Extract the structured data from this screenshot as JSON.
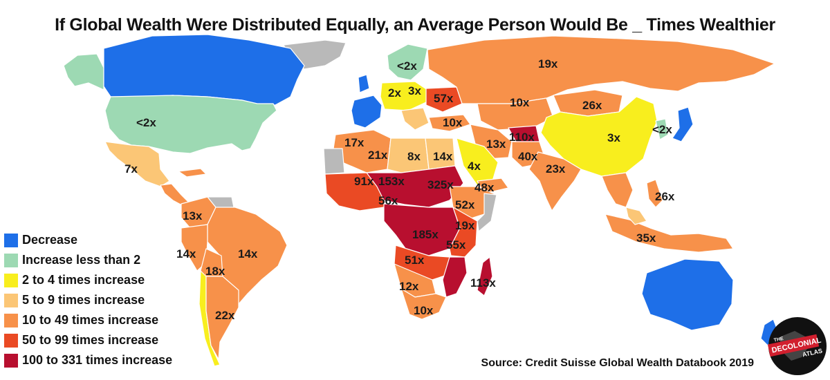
{
  "title": "If Global Wealth Were Distributed Equally, an Average Person Would Be _ Times Wealthier",
  "source": "Source: Credit Suisse Global Wealth Databook 2019",
  "logo": {
    "line1": "THE",
    "line2": "DECOLONIAL",
    "line3": "ATLAS"
  },
  "colors": {
    "decrease": "#1e6fe8",
    "lt2": "#9dd9b3",
    "c2to4": "#f8ee1e",
    "c5to9": "#fbc676",
    "c10to49": "#f7914a",
    "c50to99": "#ea4a24",
    "c100plus": "#b80f2f",
    "nodata": "#b9b9b9"
  },
  "legend": [
    {
      "label": "Decrease",
      "color": "#1e6fe8"
    },
    {
      "label": "Increase less than 2",
      "color": "#9dd9b3"
    },
    {
      "label": "2 to 4 times increase",
      "color": "#f8ee1e"
    },
    {
      "label": "5 to 9 times increase",
      "color": "#fbc676"
    },
    {
      "label": "10 to 49 times increase",
      "color": "#f7914a"
    },
    {
      "label": "50 to 99 times increase",
      "color": "#ea4a24"
    },
    {
      "label": "100 to 331 times increase",
      "color": "#b80f2f"
    }
  ],
  "labels": [
    {
      "id": "usa",
      "text": "<2x"
    },
    {
      "id": "mexico",
      "text": "7x"
    },
    {
      "id": "colombia",
      "text": "13x"
    },
    {
      "id": "peru",
      "text": "14x"
    },
    {
      "id": "brazil",
      "text": "14x"
    },
    {
      "id": "bolivia",
      "text": "18x"
    },
    {
      "id": "argentina",
      "text": "22x"
    },
    {
      "id": "scandinavia",
      "text": "<2x"
    },
    {
      "id": "germany",
      "text": "2x"
    },
    {
      "id": "poland",
      "text": "3x"
    },
    {
      "id": "ukraine",
      "text": "57x"
    },
    {
      "id": "russia",
      "text": "19x"
    },
    {
      "id": "kazakhstan",
      "text": "10x"
    },
    {
      "id": "mongolia",
      "text": "26x"
    },
    {
      "id": "turkey",
      "text": "10x"
    },
    {
      "id": "china",
      "text": "3x"
    },
    {
      "id": "japan",
      "text": "<2x"
    },
    {
      "id": "afghanistan",
      "text": "110x"
    },
    {
      "id": "iran",
      "text": "13x"
    },
    {
      "id": "pakistan",
      "text": "40x"
    },
    {
      "id": "india",
      "text": "23x"
    },
    {
      "id": "saudi",
      "text": "4x"
    },
    {
      "id": "algeria",
      "text": "17x"
    },
    {
      "id": "niger",
      "text": "21x"
    },
    {
      "id": "libya",
      "text": "8x"
    },
    {
      "id": "egypt",
      "text": "14x"
    },
    {
      "id": "sudan",
      "text": "325x"
    },
    {
      "id": "chad",
      "text": "153x"
    },
    {
      "id": "mali",
      "text": "91x"
    },
    {
      "id": "yemen",
      "text": "48x"
    },
    {
      "id": "nigeria",
      "text": "56x"
    },
    {
      "id": "ethiopia",
      "text": "52x"
    },
    {
      "id": "kenya",
      "text": "19x"
    },
    {
      "id": "drc",
      "text": "185x"
    },
    {
      "id": "tanzania",
      "text": "55x"
    },
    {
      "id": "zambia",
      "text": "51x"
    },
    {
      "id": "namibia",
      "text": "12x"
    },
    {
      "id": "southafrica",
      "text": "10x"
    },
    {
      "id": "madagascar",
      "text": "113x"
    },
    {
      "id": "philippines",
      "text": "26x"
    },
    {
      "id": "indonesia",
      "text": "35x"
    }
  ]
}
